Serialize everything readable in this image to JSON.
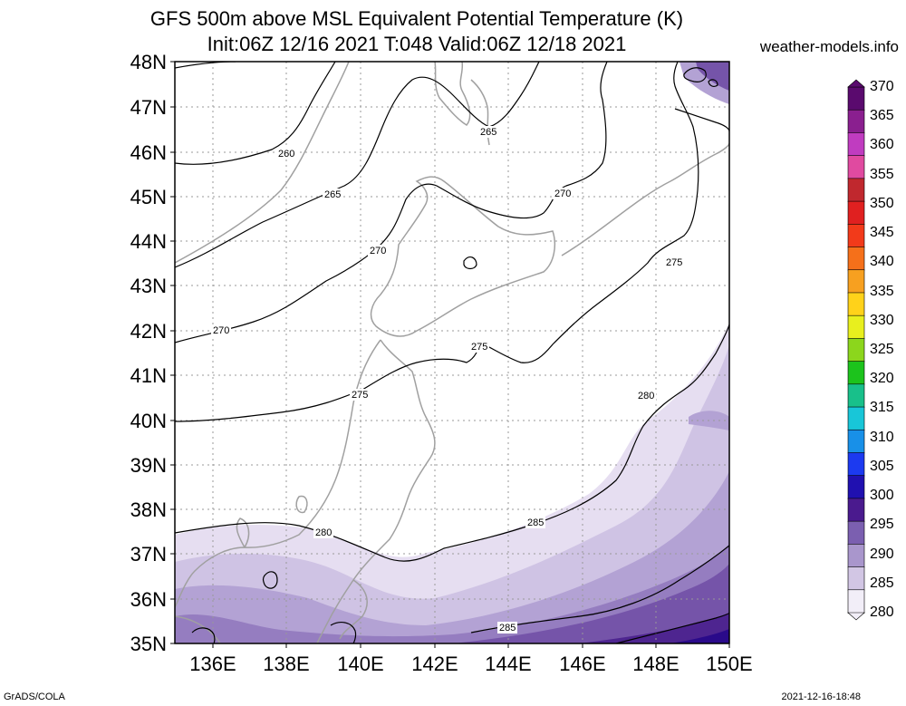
{
  "title": {
    "line1": "GFS 500m above MSL Equivalent Potential Temperature (K)",
    "line2": "Init:06Z 12/16 2021 T:048 Valid:06Z 12/18 2021"
  },
  "site": "weather-models.info",
  "footer": {
    "left": "GrADS/COLA",
    "right": "2021-12-16-18:48"
  },
  "map": {
    "lat_labels": [
      "48N",
      "47N",
      "46N",
      "45N",
      "44N",
      "43N",
      "42N",
      "41N",
      "40N",
      "39N",
      "38N",
      "37N",
      "36N",
      "35N"
    ],
    "lon_labels": [
      "136E",
      "138E",
      "140E",
      "142E",
      "144E",
      "146E",
      "148E",
      "150E"
    ],
    "contour_labels": [
      "265",
      "260",
      "265",
      "270",
      "270",
      "275",
      "270",
      "275",
      "275",
      "280",
      "280",
      "285"
    ]
  },
  "colorbar": {
    "labels": [
      "370",
      "365",
      "360",
      "355",
      "350",
      "345",
      "340",
      "335",
      "330",
      "325",
      "320",
      "315",
      "310",
      "305",
      "300",
      "295",
      "290",
      "285",
      "280"
    ],
    "colors": [
      "#5a0a6e",
      "#8a1f8f",
      "#c03cc0",
      "#e04aa0",
      "#c0282e",
      "#e02020",
      "#f23a1a",
      "#f5701a",
      "#f7a020",
      "#ffd21a",
      "#e8ef1e",
      "#8cd61c",
      "#1cc31c",
      "#18c08a",
      "#18c6d8",
      "#1890e8",
      "#1c3af0",
      "#2010b0",
      "#4a1a8e",
      "#7b5fb0",
      "#a996cc",
      "#d2c6e4",
      "#f2eef8"
    ]
  }
}
